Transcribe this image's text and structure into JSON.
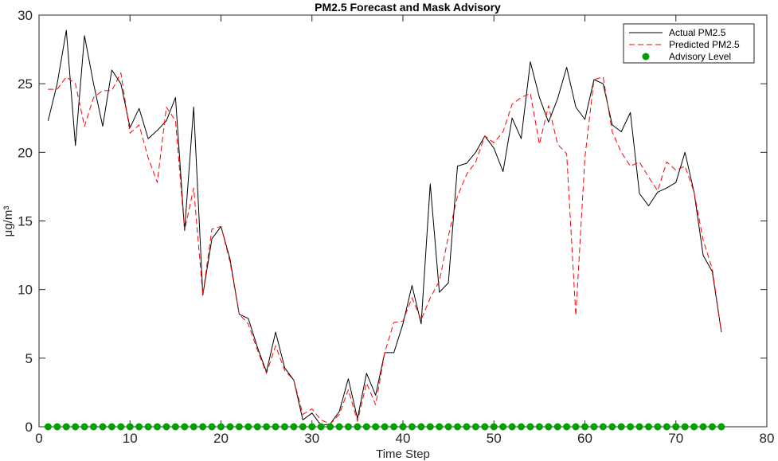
{
  "chart_data": {
    "type": "line",
    "title": "PM2.5 Forecast and Mask Advisory",
    "xlabel": "Time Step",
    "ylabel": "μg/m³",
    "xlim": [
      0,
      80
    ],
    "ylim": [
      0,
      30
    ],
    "xticks": [
      0,
      10,
      20,
      30,
      40,
      50,
      60,
      70,
      80
    ],
    "yticks": [
      0,
      5,
      10,
      15,
      20,
      25,
      30
    ],
    "grid": false,
    "legend_position": "top-right",
    "x": [
      1,
      2,
      3,
      4,
      5,
      6,
      7,
      8,
      9,
      10,
      11,
      12,
      13,
      14,
      15,
      16,
      17,
      18,
      19,
      20,
      21,
      22,
      23,
      24,
      25,
      26,
      27,
      28,
      29,
      30,
      31,
      32,
      33,
      34,
      35,
      36,
      37,
      38,
      39,
      40,
      41,
      42,
      43,
      44,
      45,
      46,
      47,
      48,
      49,
      50,
      51,
      52,
      53,
      54,
      55,
      56,
      57,
      58,
      59,
      60,
      61,
      62,
      63,
      64,
      65,
      66,
      67,
      68,
      69,
      70,
      71,
      72,
      73,
      74,
      75
    ],
    "series": [
      {
        "name": "Actual PM2.5",
        "color": "#000000",
        "style": "solid",
        "values": [
          22.3,
          25.0,
          28.9,
          20.5,
          28.5,
          25.0,
          21.9,
          26.0,
          25.0,
          21.8,
          23.2,
          21.0,
          21.6,
          22.3,
          24.0,
          14.3,
          23.3,
          9.6,
          13.7,
          14.6,
          12.2,
          8.2,
          7.9,
          5.8,
          4.0,
          6.9,
          4.3,
          3.4,
          0.5,
          1.0,
          0.1,
          0.2,
          1.1,
          3.5,
          0.6,
          3.9,
          2.3,
          5.4,
          5.4,
          7.5,
          10.3,
          7.5,
          17.7,
          9.8,
          10.5,
          19.0,
          19.2,
          20.0,
          21.2,
          20.3,
          18.6,
          22.5,
          21.0,
          26.6,
          24.0,
          22.2,
          23.9,
          26.2,
          23.3,
          22.4,
          25.3,
          25.0,
          22.0,
          21.5,
          22.9,
          17.0,
          16.1,
          17.1,
          17.4,
          17.8,
          20.0,
          17.1,
          12.5,
          11.3,
          6.9
        ]
      },
      {
        "name": "Predicted PM2.5",
        "color": "#ff0000",
        "style": "dashed",
        "values": [
          24.6,
          24.6,
          25.5,
          25.0,
          21.9,
          24.0,
          24.5,
          24.5,
          25.8,
          21.4,
          22.0,
          19.6,
          17.8,
          23.3,
          22.3,
          14.3,
          17.4,
          9.6,
          14.4,
          14.6,
          12.0,
          8.2,
          7.5,
          5.6,
          3.9,
          5.9,
          4.1,
          3.4,
          0.9,
          1.3,
          0.5,
          0.2,
          0.9,
          2.7,
          0.4,
          3.2,
          1.6,
          5.4,
          7.6,
          7.7,
          9.4,
          7.8,
          9.4,
          10.6,
          13.9,
          16.8,
          18.4,
          19.3,
          21.2,
          20.7,
          21.5,
          23.5,
          24.0,
          24.3,
          20.6,
          23.4,
          20.6,
          19.9,
          8.1,
          19.6,
          25.3,
          25.5,
          21.5,
          20.0,
          19.0,
          19.3,
          18.2,
          17.2,
          19.3,
          18.7,
          19.0,
          17.1,
          13.6,
          11.5,
          6.9
        ]
      },
      {
        "name": "Advisory Level",
        "color": "#00a000",
        "style": "markers",
        "values": [
          0,
          0,
          0,
          0,
          0,
          0,
          0,
          0,
          0,
          0,
          0,
          0,
          0,
          0,
          0,
          0,
          0,
          0,
          0,
          0,
          0,
          0,
          0,
          0,
          0,
          0,
          0,
          0,
          0,
          0,
          0,
          0,
          0,
          0,
          0,
          0,
          0,
          0,
          0,
          0,
          0,
          0,
          0,
          0,
          0,
          0,
          0,
          0,
          0,
          0,
          0,
          0,
          0,
          0,
          0,
          0,
          0,
          0,
          0,
          0,
          0,
          0,
          0,
          0,
          0,
          0,
          0,
          0,
          0,
          0,
          0,
          0,
          0,
          0,
          0
        ]
      }
    ]
  }
}
